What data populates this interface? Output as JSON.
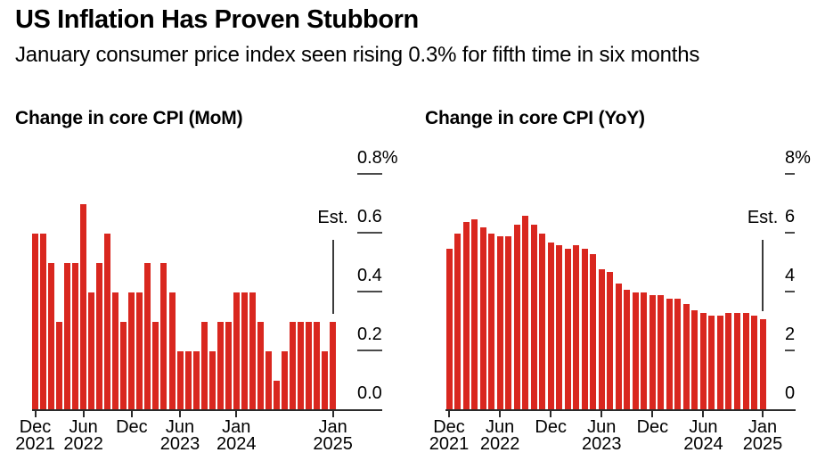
{
  "header": {
    "title": "US Inflation Has Proven Stubborn",
    "subtitle": "January consumer price index seen rising 0.3% for fifth time in six months"
  },
  "colors": {
    "bar_red": "#d9271f",
    "axis": "#2b2b2b",
    "text": "#000000"
  },
  "categories": [
    "Dec 2021",
    "Jan 2022",
    "Feb 2022",
    "Mar 2022",
    "Apr 2022",
    "May 2022",
    "Jun 2022",
    "Jul 2022",
    "Aug 2022",
    "Sep 2022",
    "Oct 2022",
    "Nov 2022",
    "Dec 2022",
    "Jan 2023",
    "Feb 2023",
    "Mar 2023",
    "Apr 2023",
    "May 2023",
    "Jun 2023",
    "Jul 2023",
    "Aug 2023",
    "Sep 2023",
    "Oct 2023",
    "Nov 2023",
    "Dec 2023",
    "Jan 2024",
    "Feb 2024",
    "Mar 2024",
    "Apr 2024",
    "May 2024",
    "Jun 2024",
    "Jul 2024",
    "Aug 2024",
    "Sep 2024",
    "Oct 2024",
    "Nov 2024",
    "Dec 2024",
    "Jan 2025"
  ],
  "chart_data": [
    {
      "type": "bar",
      "title": "Change in core CPI (MoM)",
      "bar_color": "#d9271f",
      "ylim": [
        0,
        0.8
      ],
      "grid": false,
      "axis_side": "right",
      "y_ticks": [
        {
          "label": "0.8%",
          "value": 0.8
        },
        {
          "label": "0.6",
          "value": 0.6
        },
        {
          "label": "0.4",
          "value": 0.4
        },
        {
          "label": "0.2",
          "value": 0.2
        },
        {
          "label": "0.0",
          "value": 0.0
        }
      ],
      "x_ticks": [
        {
          "index": 0,
          "month": "Dec",
          "year": "2021"
        },
        {
          "index": 6,
          "month": "Jun",
          "year": "2022"
        },
        {
          "index": 12,
          "month": "Dec",
          "year": ""
        },
        {
          "index": 18,
          "month": "Jun",
          "year": "2023"
        },
        {
          "index": 25,
          "month": "Jan",
          "year": "2024"
        },
        {
          "index": 37,
          "month": "Jan",
          "year": "2025"
        }
      ],
      "annotation": {
        "label": "Est.",
        "bar_index": 37
      },
      "values": [
        0.6,
        0.6,
        0.5,
        0.3,
        0.5,
        0.5,
        0.7,
        0.4,
        0.5,
        0.6,
        0.4,
        0.3,
        0.4,
        0.4,
        0.5,
        0.3,
        0.5,
        0.4,
        0.2,
        0.2,
        0.2,
        0.3,
        0.2,
        0.3,
        0.3,
        0.4,
        0.4,
        0.4,
        0.3,
        0.2,
        0.1,
        0.2,
        0.3,
        0.3,
        0.3,
        0.3,
        0.2,
        0.3
      ]
    },
    {
      "type": "bar",
      "title": "Change in core CPI (YoY)",
      "bar_color": "#d9271f",
      "ylim": [
        0,
        8
      ],
      "grid": false,
      "axis_side": "right",
      "y_ticks": [
        {
          "label": "8%",
          "value": 8
        },
        {
          "label": "6",
          "value": 6
        },
        {
          "label": "4",
          "value": 4
        },
        {
          "label": "2",
          "value": 2
        },
        {
          "label": "0",
          "value": 0
        }
      ],
      "x_ticks": [
        {
          "index": 0,
          "month": "Dec",
          "year": "2021"
        },
        {
          "index": 6,
          "month": "Jun",
          "year": "2022"
        },
        {
          "index": 12,
          "month": "Dec",
          "year": ""
        },
        {
          "index": 18,
          "month": "Jun",
          "year": "2023"
        },
        {
          "index": 24,
          "month": "Dec",
          "year": ""
        },
        {
          "index": 30,
          "month": "Jun",
          "year": "2024"
        },
        {
          "index": 37,
          "month": "Jan",
          "year": "2025"
        }
      ],
      "annotation": {
        "label": "Est.",
        "bar_index": 37
      },
      "values": [
        5.5,
        6.0,
        6.4,
        6.5,
        6.2,
        6.0,
        5.9,
        5.9,
        6.3,
        6.6,
        6.3,
        6.0,
        5.7,
        5.6,
        5.5,
        5.6,
        5.5,
        5.3,
        4.8,
        4.7,
        4.3,
        4.1,
        4.0,
        4.0,
        3.9,
        3.9,
        3.8,
        3.8,
        3.6,
        3.4,
        3.3,
        3.2,
        3.2,
        3.3,
        3.3,
        3.3,
        3.2,
        3.1
      ]
    }
  ]
}
